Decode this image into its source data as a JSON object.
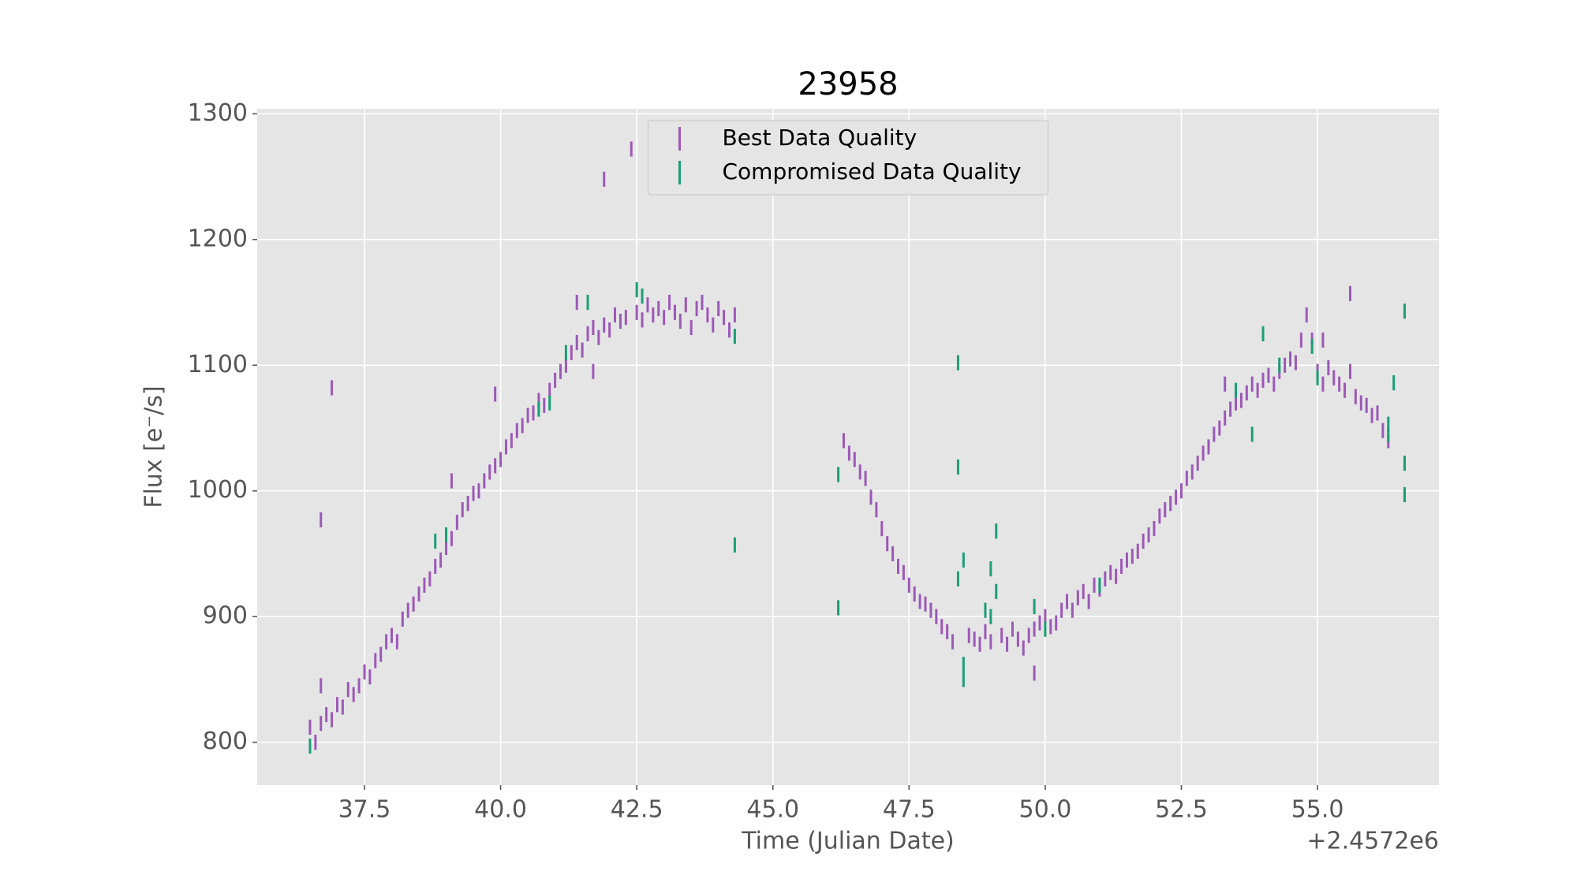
{
  "chart_data": {
    "type": "errorbar",
    "title": "23958",
    "x_label": "Time (Julian Date)",
    "y_label": "Flux [e⁻/s]",
    "x_offset_label": "+2.4572e6",
    "xlim": [
      35.53,
      57.23
    ],
    "ylim": [
      765.9,
      1304
    ],
    "xticks": [
      37.5,
      {
        "value": 40,
        "label": "40.0"
      },
      42.5,
      {
        "value": 45,
        "label": "45.0"
      },
      47.5,
      {
        "value": 50,
        "label": "50.0"
      },
      52.5,
      {
        "value": 55,
        "label": "55.0"
      }
    ],
    "yticks": [
      800,
      900,
      1000,
      1100,
      1200,
      1300
    ],
    "grid": true,
    "legend": "upper center",
    "series": [
      {
        "name": "Best Data Quality",
        "color": "#9b59b6",
        "yerr": 6,
        "x": [
          36.5,
          36.6,
          36.7,
          36.8,
          36.9,
          37.0,
          37.1,
          37.2,
          37.3,
          37.4,
          37.5,
          37.6,
          37.7,
          37.8,
          37.9,
          38.0,
          38.1,
          38.2,
          38.3,
          38.4,
          38.5,
          38.6,
          38.7,
          38.8,
          38.9,
          39.0,
          39.1,
          39.2,
          39.3,
          39.4,
          39.5,
          39.6,
          39.7,
          39.8,
          39.9,
          40.0,
          40.1,
          40.2,
          40.3,
          40.4,
          40.5,
          40.6,
          40.7,
          40.8,
          40.9,
          41.0,
          41.1,
          41.2,
          41.3,
          41.4,
          41.5,
          41.6,
          41.7,
          41.8,
          41.9,
          42.0,
          42.1,
          42.2,
          42.3,
          42.5,
          42.6,
          42.7,
          42.8,
          42.9,
          43.0,
          43.1,
          43.2,
          43.3,
          43.4,
          43.5,
          43.6,
          43.7,
          43.8,
          43.9,
          44.0,
          44.1,
          44.2,
          44.3,
          36.7,
          36.9,
          36.7,
          39.1,
          39.9,
          41.4,
          41.9,
          42.4,
          41.7,
          46.3,
          46.4,
          46.5,
          46.6,
          46.7,
          46.8,
          46.9,
          47.0,
          47.1,
          47.2,
          47.3,
          47.4,
          47.5,
          47.6,
          47.7,
          47.8,
          47.9,
          48.0,
          48.1,
          48.2,
          48.3,
          48.6,
          48.7,
          48.8,
          48.9,
          49.0,
          49.2,
          49.3,
          49.4,
          49.5,
          49.6,
          49.7,
          49.8,
          49.9,
          50.0,
          50.1,
          50.2,
          50.3,
          50.4,
          50.5,
          50.6,
          50.7,
          50.8,
          50.9,
          51.0,
          51.1,
          51.2,
          51.3,
          51.4,
          51.5,
          51.6,
          51.7,
          51.8,
          51.9,
          52.0,
          52.1,
          52.2,
          52.3,
          52.4,
          52.5,
          52.6,
          52.7,
          52.8,
          52.9,
          53.0,
          53.1,
          53.2,
          53.3,
          53.4,
          53.5,
          53.6,
          53.7,
          53.8,
          53.9,
          54.0,
          54.1,
          54.2,
          54.3,
          54.4,
          54.5,
          54.6,
          54.7,
          54.8,
          54.9,
          55.0,
          55.1,
          55.2,
          55.3,
          55.4,
          55.5,
          55.6,
          55.7,
          55.8,
          55.9,
          56.0,
          56.1,
          56.2,
          56.3,
          49.8,
          55.6,
          55.1,
          53.3
        ],
        "y": [
          812,
          800,
          815,
          822,
          818,
          830,
          828,
          842,
          838,
          845,
          856,
          852,
          865,
          870,
          880,
          885,
          880,
          898,
          905,
          910,
          918,
          925,
          930,
          940,
          945,
          955,
          962,
          975,
          985,
          990,
          998,
          1000,
          1008,
          1015,
          1020,
          1025,
          1035,
          1040,
          1048,
          1052,
          1060,
          1062,
          1072,
          1068,
          1080,
          1088,
          1095,
          1100,
          1110,
          1118,
          1112,
          1125,
          1130,
          1122,
          1132,
          1128,
          1140,
          1135,
          1138,
          1142,
          1136,
          1148,
          1140,
          1145,
          1138,
          1150,
          1142,
          1135,
          1148,
          1130,
          1145,
          1150,
          1140,
          1132,
          1145,
          1138,
          1128,
          1140,
          977,
          1082,
          845,
          1008,
          1077,
          1150,
          1248,
          1272,
          1095,
          1040,
          1030,
          1025,
          1015,
          1010,
          995,
          985,
          970,
          958,
          950,
          940,
          935,
          925,
          918,
          912,
          910,
          905,
          900,
          892,
          888,
          880,
          885,
          882,
          878,
          888,
          880,
          885,
          878,
          890,
          882,
          875,
          885,
          890,
          895,
          900,
          892,
          895,
          905,
          912,
          905,
          915,
          920,
          912,
          925,
          922,
          930,
          935,
          932,
          940,
          945,
          948,
          952,
          960,
          965,
          970,
          980,
          985,
          990,
          995,
          1000,
          1010,
          1015,
          1022,
          1030,
          1035,
          1045,
          1050,
          1058,
          1065,
          1070,
          1072,
          1078,
          1085,
          1080,
          1088,
          1092,
          1085,
          1095,
          1100,
          1105,
          1102,
          1120,
          1140,
          1120,
          1095,
          1085,
          1098,
          1090,
          1085,
          1080,
          1095,
          1075,
          1070,
          1068,
          1060,
          1062,
          1048,
          1040,
          855,
          1157,
          1120,
          1085
        ]
      },
      {
        "name": "Compromised Data Quality",
        "color": "#1b9e77",
        "yerr": 6,
        "x": [
          36.5,
          38.8,
          39.0,
          40.7,
          40.9,
          41.2,
          41.6,
          42.5,
          42.6,
          44.3,
          44.3,
          46.2,
          46.2,
          48.4,
          48.4,
          48.5,
          48.4,
          48.5,
          48.5,
          49.1,
          49.0,
          49.1,
          49.0,
          48.9,
          49.8,
          50.0,
          51.0,
          53.5,
          53.8,
          54.0,
          54.3,
          54.9,
          55.0,
          56.3,
          56.3,
          56.4,
          56.6,
          56.6,
          56.6
        ],
        "y": [
          797,
          960,
          965,
          1065,
          1070,
          1110,
          1150,
          1160,
          1155,
          1123,
          957,
          1013,
          907,
          1102,
          1019,
          945,
          930,
          862,
          850,
          968,
          938,
          920,
          900,
          905,
          908,
          890,
          925,
          1080,
          1045,
          1125,
          1100,
          1115,
          1090,
          1045,
          1053,
          1086,
          1143,
          1022,
          997
        ]
      }
    ]
  }
}
